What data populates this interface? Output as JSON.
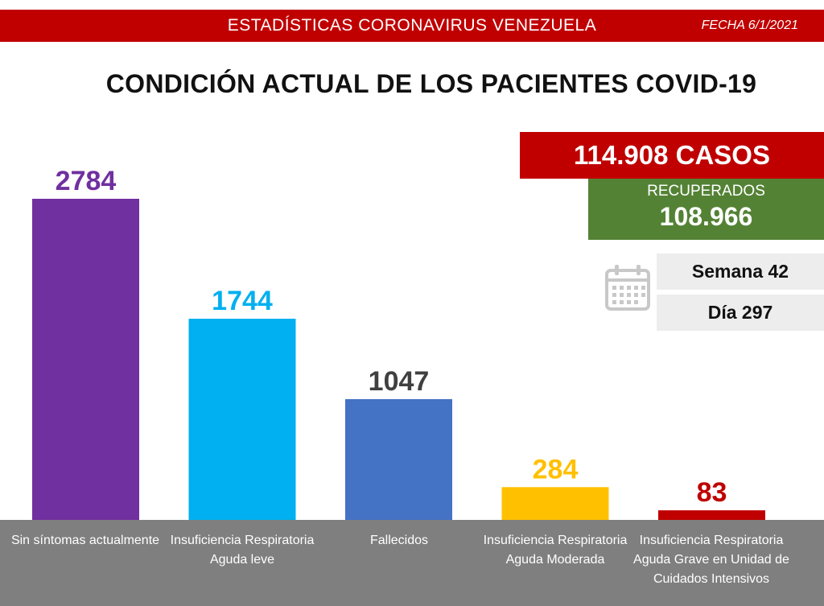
{
  "header": {
    "title": "ESTADÍSTICAS CORONAVIRUS VENEZUELA",
    "date": "FECHA 6/1/2021"
  },
  "main_title": "CONDICIÓN ACTUAL DE LOS PACIENTES COVID-19",
  "stats": {
    "cases": "114.908 CASOS",
    "recovered_label": "RECUPERADOS",
    "recovered_value": "108.966",
    "week": "Semana 42",
    "day": "Día 297"
  },
  "chart_data": {
    "type": "bar",
    "categories": [
      "Sin síntomas actualmente",
      "Insuficiencia Respiratoria Aguda leve",
      "Fallecidos",
      "Insuficiencia Respiratoria Aguda Moderada",
      "Insuficiencia Respiratoria Aguda Grave en Unidad de Cuidados Intensivos"
    ],
    "values": [
      2784,
      1744,
      1047,
      284,
      83
    ],
    "value_labels": [
      "2784",
      "1744",
      "1047",
      "284",
      "83"
    ],
    "bar_colors": [
      "#7030a0",
      "#00b0f0",
      "#4472c4",
      "#ffc000",
      "#c00000"
    ],
    "label_colors": [
      "#7030a0",
      "#00b0f0",
      "#404040",
      "#ffc000",
      "#c00000"
    ],
    "ylim": [
      0,
      2784
    ],
    "grid": false,
    "legend": false
  }
}
